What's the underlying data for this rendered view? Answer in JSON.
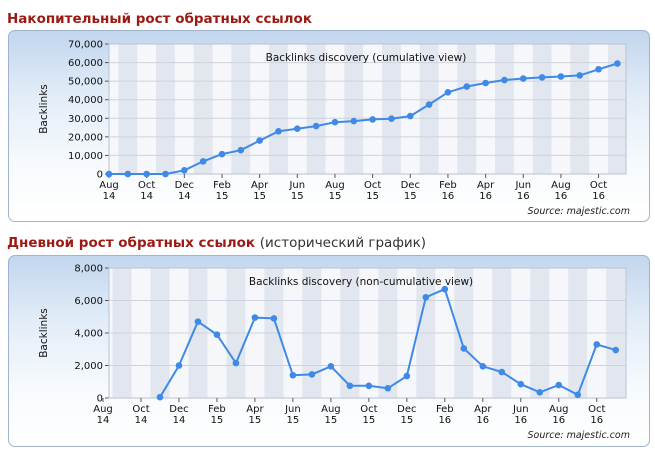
{
  "chart_data": [
    {
      "type": "line",
      "section_title": "Накопительный рост обратных ссылок",
      "section_subtitle": "",
      "title": "Backlinks discovery (cumulative view)",
      "ylabel": "Backlinks",
      "xlabel": "",
      "source": "Source: majestic.com",
      "ylim": [
        0,
        70000
      ],
      "yticks": [
        "0",
        "10,000",
        "20,000",
        "30,000",
        "40,000",
        "50,000",
        "60,000",
        "70,000"
      ],
      "xticks": [
        {
          "m": "Aug",
          "y": "14"
        },
        {
          "m": "Oct",
          "y": "14"
        },
        {
          "m": "Dec",
          "y": "14"
        },
        {
          "m": "Feb",
          "y": "15"
        },
        {
          "m": "Apr",
          "y": "15"
        },
        {
          "m": "Jun",
          "y": "15"
        },
        {
          "m": "Aug",
          "y": "15"
        },
        {
          "m": "Oct",
          "y": "15"
        },
        {
          "m": "Dec",
          "y": "15"
        },
        {
          "m": "Feb",
          "y": "16"
        },
        {
          "m": "Apr",
          "y": "16"
        },
        {
          "m": "Jun",
          "y": "16"
        },
        {
          "m": "Aug",
          "y": "16"
        },
        {
          "m": "Oct",
          "y": "16"
        }
      ],
      "x": [
        "2014-08",
        "2014-09",
        "2014-10",
        "2014-11",
        "2014-12",
        "2015-01",
        "2015-02",
        "2015-03",
        "2015-04",
        "2015-05",
        "2015-06",
        "2015-07",
        "2015-08",
        "2015-09",
        "2015-10",
        "2015-11",
        "2015-12",
        "2016-01",
        "2016-02",
        "2016-03",
        "2016-04",
        "2016-05",
        "2016-06",
        "2016-07",
        "2016-08",
        "2016-09",
        "2016-10",
        "2016-11"
      ],
      "values": [
        0,
        0,
        0,
        0,
        2000,
        6800,
        10700,
        12800,
        18000,
        23000,
        24400,
        25800,
        27900,
        28500,
        29400,
        29800,
        31200,
        37400,
        44000,
        47100,
        49000,
        50600,
        51400,
        52000,
        52500,
        53100,
        56400,
        59500
      ],
      "grid": true,
      "color": "#3f8ae6"
    },
    {
      "type": "line",
      "section_title": "Дневной рост обратных ссылок",
      "section_subtitle": "(исторический график)",
      "title": "Backlinks discovery (non-cumulative view)",
      "ylabel": "Backlinks",
      "xlabel": "",
      "source": "Source: majestic.com",
      "ylim": [
        0,
        8000
      ],
      "yticks": [
        "0",
        "2,000",
        "4,000",
        "6,000",
        "8,000"
      ],
      "xticks": [
        {
          "m": "Aug",
          "y": "14"
        },
        {
          "m": "Oct",
          "y": "14"
        },
        {
          "m": "Dec",
          "y": "14"
        },
        {
          "m": "Feb",
          "y": "15"
        },
        {
          "m": "Apr",
          "y": "15"
        },
        {
          "m": "Jun",
          "y": "15"
        },
        {
          "m": "Aug",
          "y": "15"
        },
        {
          "m": "Oct",
          "y": "15"
        },
        {
          "m": "Dec",
          "y": "15"
        },
        {
          "m": "Feb",
          "y": "16"
        },
        {
          "m": "Apr",
          "y": "16"
        },
        {
          "m": "Jun",
          "y": "16"
        },
        {
          "m": "Aug",
          "y": "16"
        },
        {
          "m": "Oct",
          "y": "16"
        }
      ],
      "x": [
        "2014-11",
        "2014-12",
        "2015-01",
        "2015-02",
        "2015-03",
        "2015-04",
        "2015-05",
        "2015-06",
        "2015-07",
        "2015-08",
        "2015-09",
        "2015-10",
        "2015-11",
        "2015-12",
        "2016-01",
        "2016-02",
        "2016-03",
        "2016-04",
        "2016-05",
        "2016-06",
        "2016-07",
        "2016-08",
        "2016-09",
        "2016-10",
        "2016-11"
      ],
      "values": [
        50,
        2000,
        4700,
        3900,
        2150,
        4950,
        4900,
        1400,
        1450,
        1950,
        750,
        750,
        600,
        1350,
        6200,
        6700,
        3050,
        1950,
        1600,
        850,
        350,
        800,
        200,
        3300,
        2950
      ],
      "grid": true,
      "color": "#3f8ae6"
    }
  ]
}
